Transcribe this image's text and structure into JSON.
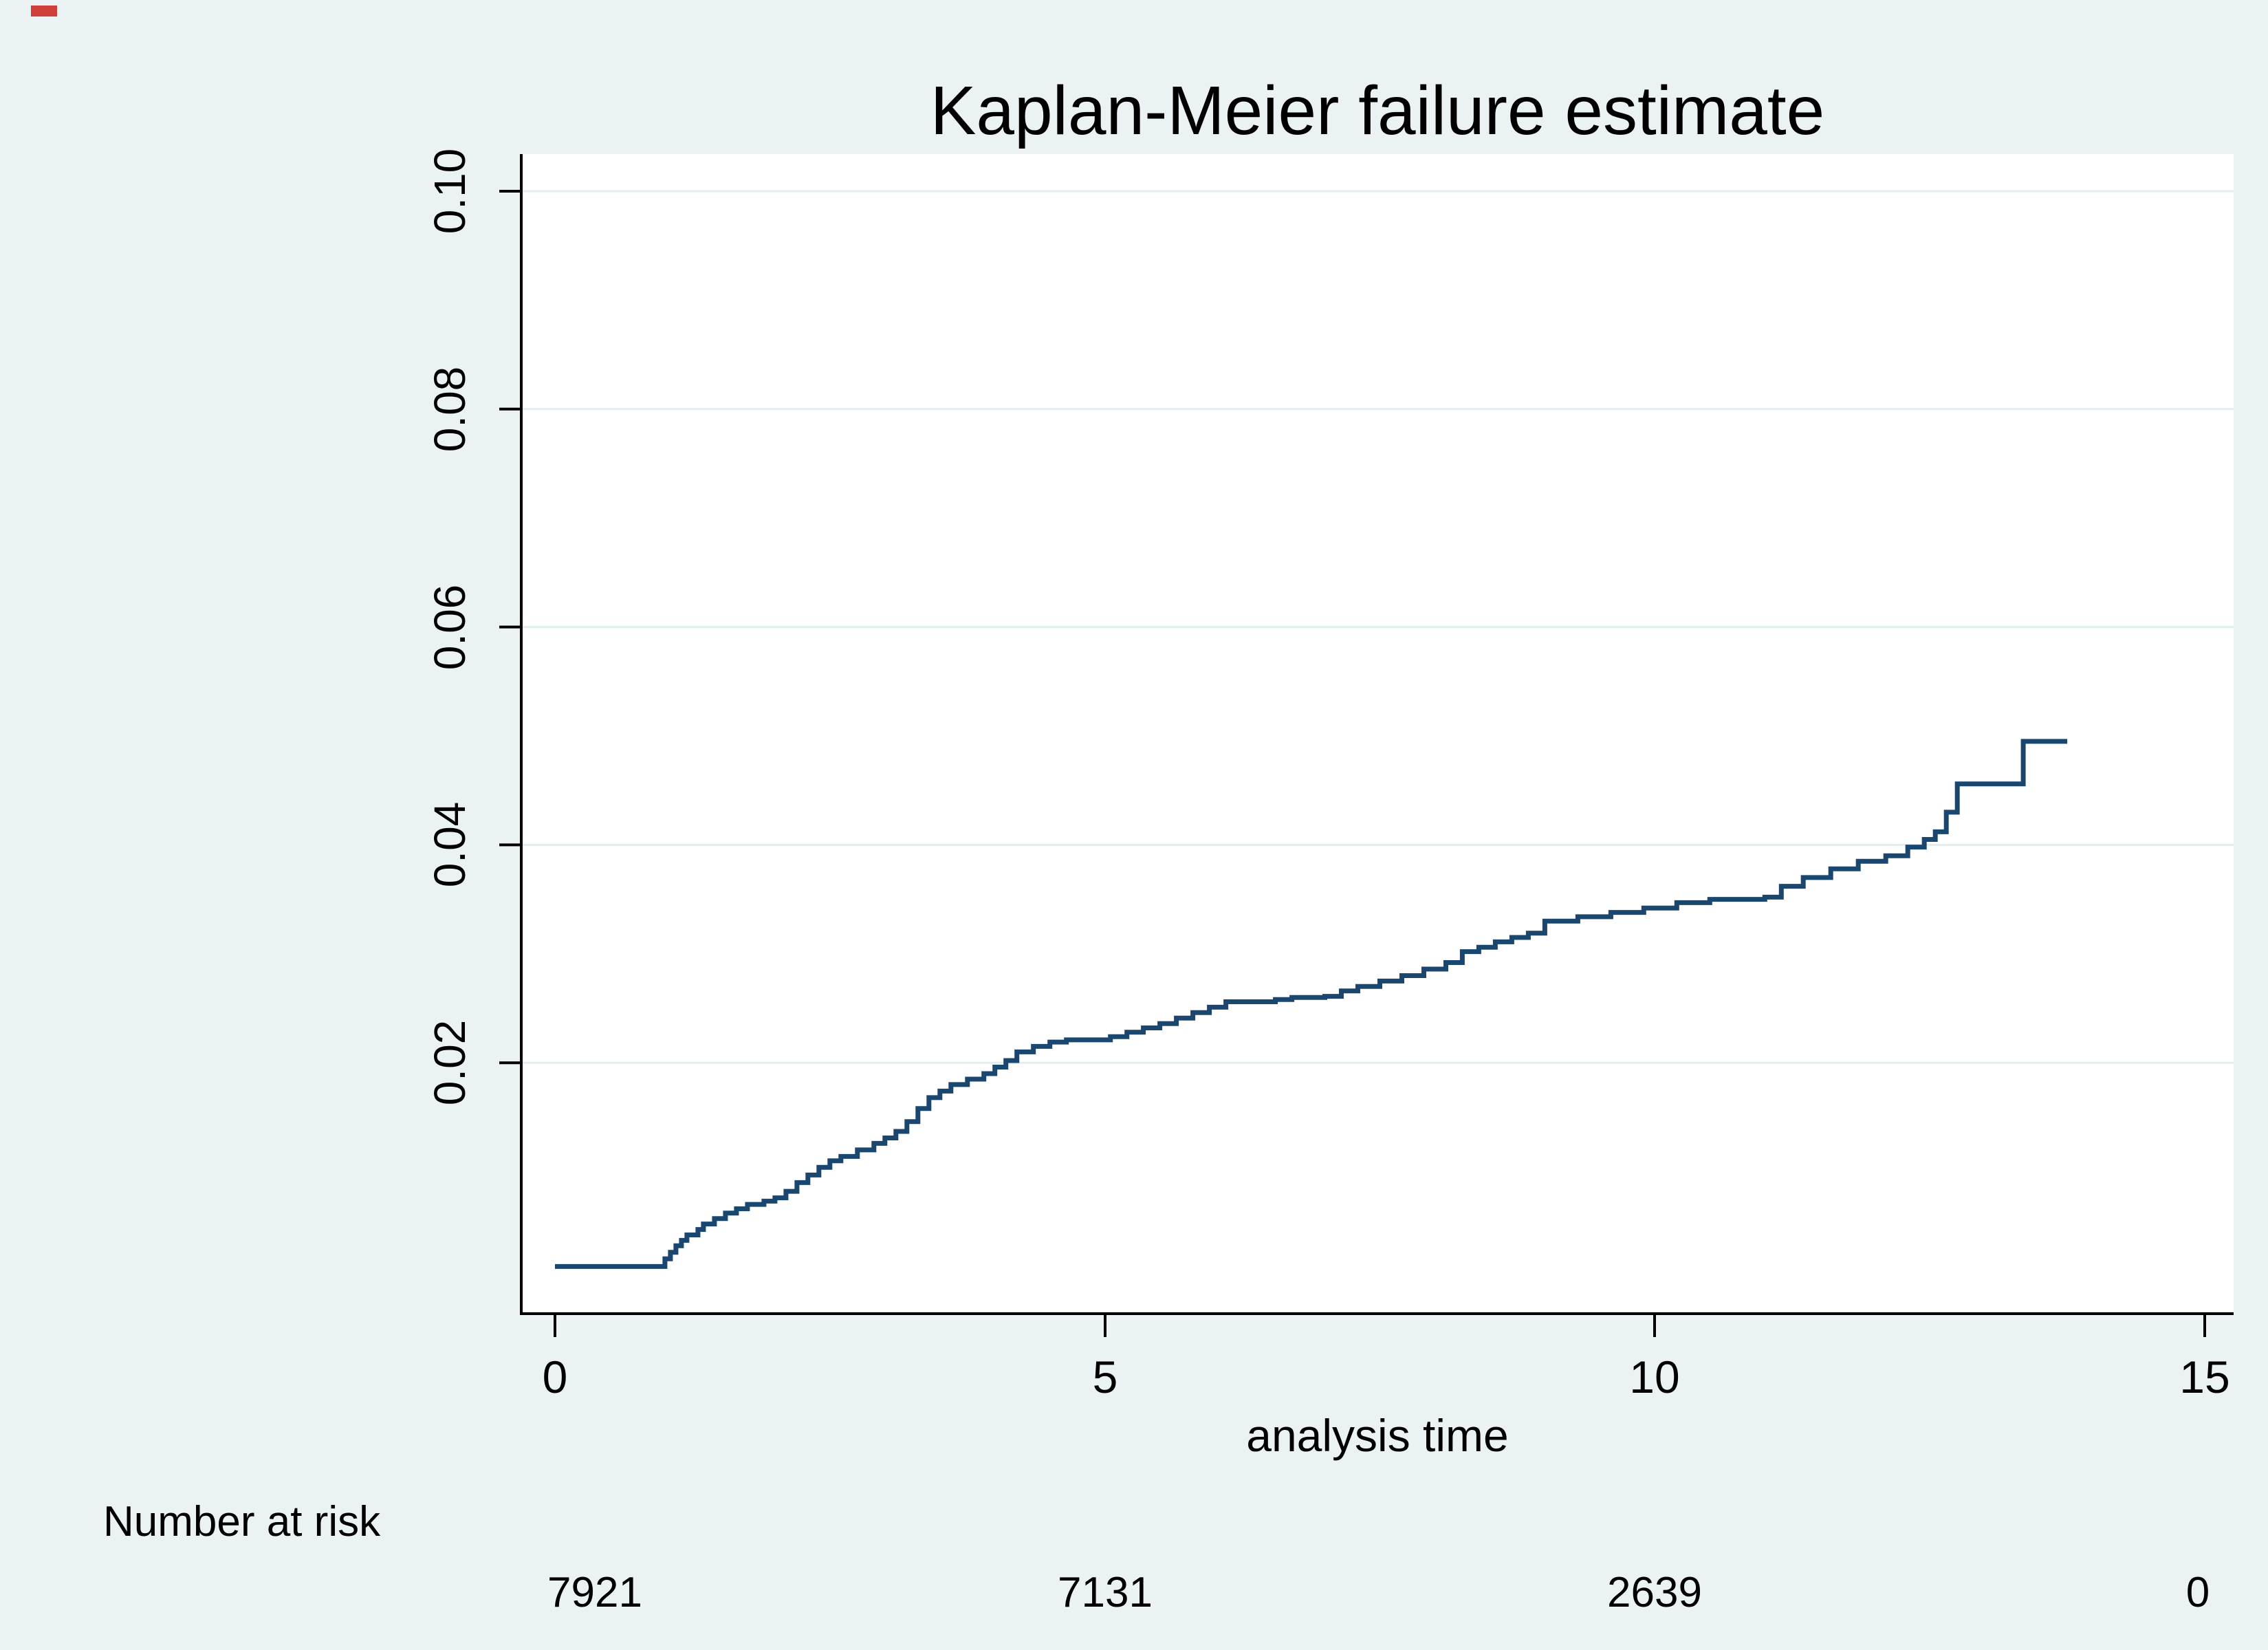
{
  "title": "Kaplan-Meier failure estimate",
  "axes": {
    "x_label": "analysis time",
    "x_ticks": [
      "0",
      "5",
      "10",
      "15"
    ],
    "y_ticks": [
      "0.02",
      "0.04",
      "0.06",
      "0.08",
      "0.10"
    ]
  },
  "risk_table": {
    "label": "Number at risk"
  },
  "colors": {
    "background": "#EAF2F3",
    "plot_background": "#FFFFFF",
    "gridline": "#E0EDF1",
    "axis": "#000000",
    "curve": "#1A476F",
    "title": "#26456E"
  },
  "chart_data": {
    "type": "line",
    "subtype": "step-after",
    "title": "Kaplan-Meier failure estimate",
    "xlabel": "analysis time",
    "ylabel": "",
    "xlim": [
      0,
      15
    ],
    "ylim": [
      0,
      0.1
    ],
    "x_tick_values": [
      0,
      5,
      10,
      15
    ],
    "y_tick_values": [
      0.02,
      0.04,
      0.06,
      0.08,
      0.1
    ],
    "grid": "horizontal",
    "legend": "none",
    "series": [
      {
        "name": "Kaplan-Meier failure estimate",
        "points": [
          [
            0,
            0.0013
          ],
          [
            0.95,
            0.0013
          ],
          [
            1.0,
            0.002
          ],
          [
            1.05,
            0.0026
          ],
          [
            1.1,
            0.0032
          ],
          [
            1.15,
            0.0037
          ],
          [
            1.2,
            0.0042
          ],
          [
            1.3,
            0.0047
          ],
          [
            1.35,
            0.0052
          ],
          [
            1.45,
            0.0057
          ],
          [
            1.55,
            0.0062
          ],
          [
            1.65,
            0.0066
          ],
          [
            1.75,
            0.007
          ],
          [
            1.9,
            0.0073
          ],
          [
            2.0,
            0.0076
          ],
          [
            2.1,
            0.0082
          ],
          [
            2.2,
            0.009
          ],
          [
            2.3,
            0.0097
          ],
          [
            2.4,
            0.0104
          ],
          [
            2.5,
            0.011
          ],
          [
            2.6,
            0.0114
          ],
          [
            2.75,
            0.012
          ],
          [
            2.9,
            0.0126
          ],
          [
            3.0,
            0.0131
          ],
          [
            3.1,
            0.0137
          ],
          [
            3.2,
            0.0146
          ],
          [
            3.3,
            0.0158
          ],
          [
            3.4,
            0.0168
          ],
          [
            3.5,
            0.0174
          ],
          [
            3.6,
            0.018
          ],
          [
            3.75,
            0.0185
          ],
          [
            3.9,
            0.019
          ],
          [
            4.0,
            0.0196
          ],
          [
            4.1,
            0.0202
          ],
          [
            4.2,
            0.021
          ],
          [
            4.35,
            0.0215
          ],
          [
            4.5,
            0.0219
          ],
          [
            4.65,
            0.0221
          ],
          [
            5.05,
            0.0224
          ],
          [
            5.2,
            0.0228
          ],
          [
            5.35,
            0.0232
          ],
          [
            5.5,
            0.0236
          ],
          [
            5.65,
            0.0241
          ],
          [
            5.8,
            0.0246
          ],
          [
            5.95,
            0.0251
          ],
          [
            6.1,
            0.0256
          ],
          [
            6.55,
            0.0258
          ],
          [
            6.7,
            0.026
          ],
          [
            7.0,
            0.0261
          ],
          [
            7.15,
            0.0266
          ],
          [
            7.3,
            0.027
          ],
          [
            7.5,
            0.0275
          ],
          [
            7.7,
            0.028
          ],
          [
            7.9,
            0.0286
          ],
          [
            8.1,
            0.0292
          ],
          [
            8.25,
            0.0302
          ],
          [
            8.4,
            0.0306
          ],
          [
            8.55,
            0.0311
          ],
          [
            8.7,
            0.0315
          ],
          [
            8.85,
            0.0319
          ],
          [
            9.0,
            0.033
          ],
          [
            9.3,
            0.0334
          ],
          [
            9.6,
            0.0338
          ],
          [
            9.9,
            0.0342
          ],
          [
            10.2,
            0.0347
          ],
          [
            10.5,
            0.035
          ],
          [
            11.0,
            0.0352
          ],
          [
            11.15,
            0.0362
          ],
          [
            11.35,
            0.037
          ],
          [
            11.6,
            0.0378
          ],
          [
            11.85,
            0.0385
          ],
          [
            12.1,
            0.039
          ],
          [
            12.3,
            0.0398
          ],
          [
            12.45,
            0.0405
          ],
          [
            12.55,
            0.0412
          ],
          [
            12.65,
            0.043
          ],
          [
            12.75,
            0.0456
          ],
          [
            13.3,
            0.0456
          ],
          [
            13.35,
            0.0495
          ],
          [
            13.75,
            0.0495
          ]
        ]
      }
    ],
    "number_at_risk": {
      "label": "Number at risk",
      "times": [
        0,
        5,
        10,
        15
      ],
      "values": [
        "7921",
        "7131",
        "2639",
        "0"
      ]
    }
  }
}
